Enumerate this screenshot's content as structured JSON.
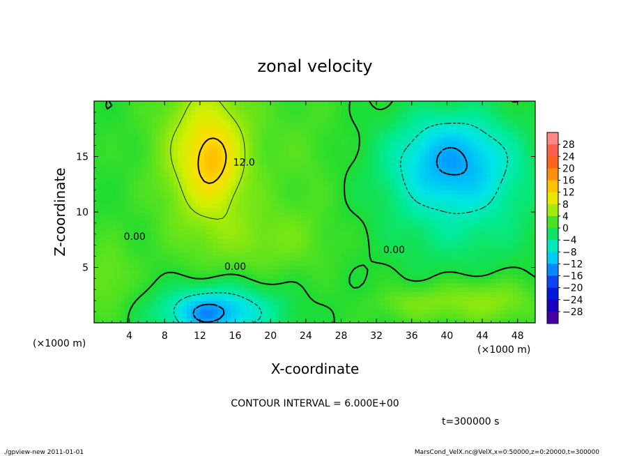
{
  "chart_data": {
    "type": "heatmap",
    "title": "zonal velocity",
    "xlabel": "X-coordinate",
    "ylabel": "Z-coordinate",
    "x_unit_left": "(×1000 m)",
    "x_unit_right": "(×1000 m)",
    "xlim": [
      0,
      50
    ],
    "ylim": [
      0,
      20
    ],
    "x_ticks": [
      "4",
      "8",
      "12",
      "16",
      "20",
      "24",
      "28",
      "32",
      "36",
      "40",
      "44",
      "48"
    ],
    "y_ticks": [
      "5",
      "10",
      "15"
    ],
    "colorbar_ticks": [
      "28",
      "24",
      "20",
      "16",
      "12",
      "8",
      "4",
      "0",
      "−4",
      "−8",
      "−12",
      "−16",
      "−20",
      "−24",
      "−28"
    ],
    "colorbar_range": [
      -32,
      32
    ],
    "contour_interval_text": "CONTOUR INTERVAL = 6.000E+00",
    "time_text": "t=300000 s",
    "contour_labels": [
      {
        "text": "12.0",
        "x": 17.0,
        "z": 14.5
      },
      {
        "text": "0.00",
        "x": 4.6,
        "z": 7.8
      },
      {
        "text": "0.00",
        "x": 16.0,
        "z": 5.1
      },
      {
        "text": "0.00",
        "x": 34.0,
        "z": 6.6
      }
    ],
    "blobs": [
      {
        "cx": 12.8,
        "cz": 15.3,
        "rx": 5.2,
        "rz": 7.0,
        "amp": 9.0
      },
      {
        "cx": 13.5,
        "cz": 14.5,
        "rx": 2.6,
        "rz": 3.2,
        "amp": 5.0
      },
      {
        "cx": 20.0,
        "cz": 7.5,
        "rx": 7.0,
        "rz": 3.0,
        "amp": 3.0
      },
      {
        "cx": 14.0,
        "cz": 1.0,
        "rx": 6.5,
        "rz": 2.3,
        "amp": -11.0
      },
      {
        "cx": 12.5,
        "cz": 0.8,
        "rx": 2.8,
        "rz": 1.5,
        "amp": -4.0
      },
      {
        "cx": 40.5,
        "cz": 14.8,
        "rx": 6.5,
        "rz": 4.0,
        "amp": -10.0
      },
      {
        "cx": 41.5,
        "cz": 11.0,
        "rx": 9.0,
        "rz": 6.5,
        "amp": -4.5
      },
      {
        "cx": 44.0,
        "cz": 2.0,
        "rx": 6.0,
        "rz": 2.0,
        "amp": 5.0
      },
      {
        "cx": 36.0,
        "cz": 1.8,
        "rx": 4.0,
        "rz": 1.5,
        "amp": 3.0
      },
      {
        "cx": 1.5,
        "cz": 4.0,
        "rx": 3.0,
        "rz": 3.5,
        "amp": 3.0
      },
      {
        "cx": 24.0,
        "cz": 15.0,
        "rx": 4.0,
        "rz": 6.0,
        "amp": 1.5
      }
    ],
    "background_value": 0.5
  },
  "footer": {
    "left": "./gpview-new  2011-01-01",
    "right": "MarsCond_VelX.nc@VelX,x=0:50000,z=0:20000,t=300000"
  }
}
